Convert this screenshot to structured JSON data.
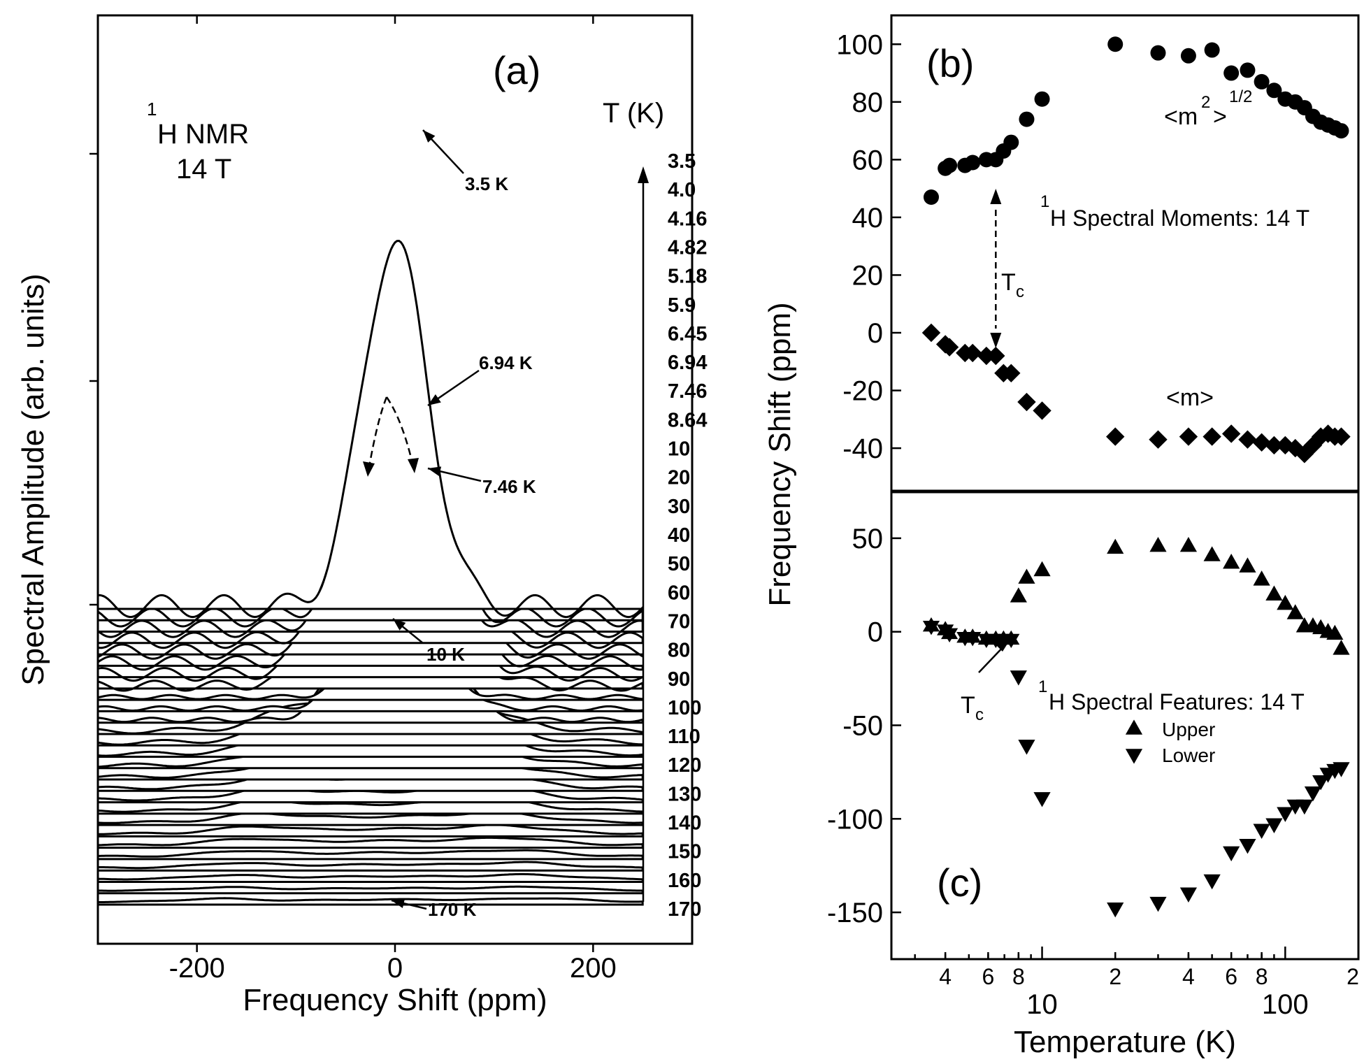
{
  "chart_data": [
    {
      "panel": "a",
      "type": "line",
      "panel_label": "(a)",
      "xlabel": "Frequency Shift (ppm)",
      "ylabel": "Spectral Amplitude (arb. units)",
      "xlim": [
        -300,
        300
      ],
      "xticks": [
        "-200",
        "0",
        "200"
      ],
      "xtick_values": [
        -200,
        0,
        200
      ],
      "annotation": "1H NMR 14 T",
      "annotation_sup": "1",
      "annotation_line1": "H NMR",
      "annotation_line2": "14 T",
      "temperature_axis_label": "T (K)",
      "temperatures": [
        "3.5",
        "4.0",
        "4.16",
        "4.82",
        "5.18",
        "5.9",
        "6.45",
        "6.94",
        "7.46",
        "8.64",
        "10",
        "20",
        "30",
        "40",
        "50",
        "60",
        "70",
        "80",
        "90",
        "100",
        "110",
        "120",
        "130",
        "140",
        "150",
        "160",
        "170"
      ],
      "peak_heights": [
        3.06,
        2.5,
        2.28,
        2.14,
        2.0,
        1.88,
        1.78,
        1.4,
        0.85,
        0.9,
        0.87,
        0.34,
        0.3,
        0.26,
        0.23,
        0.2,
        0.18,
        0.16,
        0.14,
        0.12,
        0.1,
        0.09,
        0.08,
        0.07,
        0.06,
        0.05,
        0.05
      ],
      "curve_labels": [
        {
          "text": "3.5 K",
          "index": 0
        },
        {
          "text": "6.94 K",
          "index": 7
        },
        {
          "text": "7.46 K",
          "index": 8
        },
        {
          "text": "10 K",
          "index": 10
        },
        {
          "text": "170 K",
          "index": 26
        }
      ]
    },
    {
      "panel": "b",
      "type": "scatter",
      "panel_label": "(b)",
      "xscale": "log",
      "xlim": [
        2.4,
        200
      ],
      "ylim": [
        -55,
        110
      ],
      "yticks": [
        -40,
        -20,
        0,
        20,
        40,
        60,
        80,
        100
      ],
      "ytick_labels": [
        "-40",
        "-20",
        "0",
        "20",
        "40",
        "60",
        "80",
        "100"
      ],
      "title_text": "1H Spectral Moments: 14 T",
      "title_sup": "1",
      "title_rest": "H Spectral Moments: 14 T",
      "series": [
        {
          "name": "<m2>1/2",
          "label_base": "<m",
          "label_sup1": "2",
          "label_end": ">",
          "label_sup2": "1/2",
          "marker": "circle",
          "x": [
            3.5,
            4.0,
            4.16,
            4.82,
            5.18,
            5.9,
            6.45,
            6.94,
            7.46,
            8.64,
            10,
            20,
            30,
            40,
            50,
            60,
            70,
            80,
            90,
            100,
            110,
            120,
            130,
            140,
            150,
            160,
            170
          ],
          "y": [
            47,
            57,
            58,
            58,
            59,
            60,
            60,
            63,
            66,
            74,
            81,
            100,
            97,
            96,
            98,
            90,
            91,
            87,
            84,
            81,
            80,
            78,
            75,
            73,
            72,
            71,
            70
          ]
        },
        {
          "name": "<m>",
          "label_base": "<m>",
          "marker": "diamond",
          "x": [
            3.5,
            4.0,
            4.16,
            4.82,
            5.18,
            5.9,
            6.45,
            6.94,
            7.46,
            8.64,
            10,
            20,
            30,
            40,
            50,
            60,
            70,
            80,
            90,
            100,
            110,
            120,
            130,
            140,
            150,
            160,
            170
          ],
          "y": [
            0,
            -4,
            -5,
            -7,
            -7,
            -8,
            -8,
            -14,
            -14,
            -24,
            -27,
            -36,
            -37,
            -36,
            -36,
            -35,
            -37,
            -38,
            -39,
            -39,
            -40,
            -42,
            -39,
            -36,
            -35,
            -36,
            -36
          ]
        }
      ],
      "tc_label": "Tc",
      "tc_main": "T",
      "tc_sub": "c",
      "tc_x": 6.45
    },
    {
      "panel": "c",
      "type": "scatter",
      "panel_label": "(c)",
      "xscale": "log",
      "xlim": [
        2.4,
        200
      ],
      "ylim": [
        -175,
        75
      ],
      "yticks": [
        -150,
        -100,
        -50,
        0,
        50
      ],
      "ytick_labels": [
        "-150",
        "-100",
        "-50",
        "0",
        "50"
      ],
      "xlabel": "Temperature (K)",
      "xtick_major": [
        10,
        100
      ],
      "xtick_major_labels": [
        "10",
        "100"
      ],
      "xtick_minor": [
        4,
        6,
        8,
        20,
        40,
        60,
        80,
        200
      ],
      "xtick_minor_labels": [
        "4",
        "6",
        "8",
        "2",
        "4",
        "6",
        "8",
        "2"
      ],
      "title_text": "1H Spectral Features: 14 T",
      "title_sup": "1",
      "title_rest": "H Spectral Features: 14 T",
      "series": [
        {
          "name": "Upper",
          "marker": "triangle-up",
          "x": [
            8.0,
            8.64,
            10,
            20,
            30,
            40,
            50,
            60,
            70,
            80,
            90,
            100,
            110,
            120,
            130,
            140,
            150,
            160,
            170
          ],
          "y": [
            19,
            29,
            33,
            45,
            46,
            46,
            41,
            37,
            35,
            28,
            20,
            15,
            10,
            3,
            3,
            2,
            0,
            -1,
            -9
          ]
        },
        {
          "name": "Lower",
          "marker": "triangle-down",
          "x": [
            8.0,
            8.64,
            10,
            20,
            30,
            40,
            50,
            60,
            70,
            80,
            90,
            100,
            110,
            120,
            130,
            140,
            150,
            160,
            170
          ],
          "y": [
            -24,
            -61,
            -89,
            -148,
            -145,
            -140,
            -133,
            -118,
            -114,
            -106,
            -103,
            -97,
            -93,
            -93,
            -86,
            -80,
            -76,
            -74,
            -73
          ]
        },
        {
          "name": "star",
          "marker": "star",
          "x": [
            3.5,
            4.0,
            4.16,
            4.82,
            5.18,
            5.9,
            6.45,
            6.94,
            7.46
          ],
          "y": [
            3,
            1,
            -1,
            -3,
            -3,
            -4,
            -4,
            -4,
            -4
          ]
        }
      ],
      "tc_label": "Tc",
      "tc_main": "T",
      "tc_sub": "c"
    }
  ],
  "shared_ylabel": "Frequency Shift (ppm)"
}
